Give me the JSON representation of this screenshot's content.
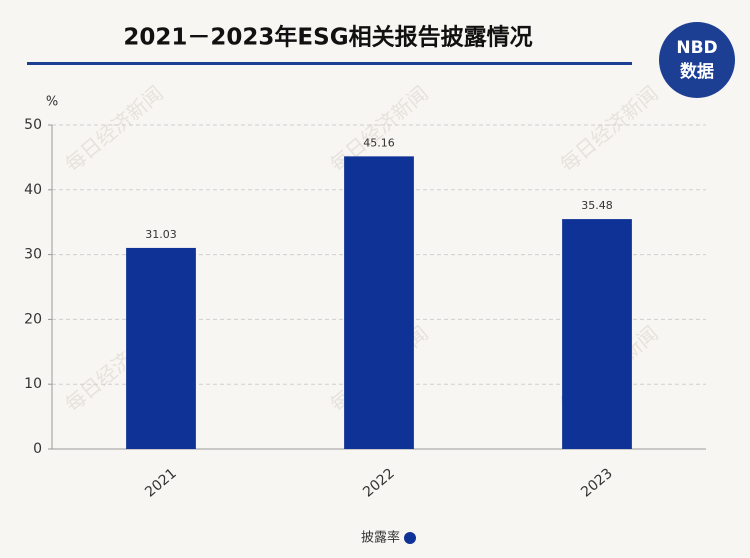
{
  "chart_data": {
    "type": "bar",
    "title": "2021－2023年ESG相关报告披露情况",
    "brand": "NBD",
    "brand_sub": "数据",
    "watermark": "每日经济新闻",
    "y_label": "%",
    "categories": [
      "2021",
      "2022",
      "2023"
    ],
    "series": [
      {
        "name": "披露率",
        "color": "#0f3296",
        "values": [
          31.03,
          45.16,
          35.48
        ]
      }
    ],
    "ylim": [
      0,
      50
    ],
    "yticks": [
      0,
      10,
      20,
      30,
      40,
      50
    ],
    "grid": true,
    "legend": "bottom"
  }
}
